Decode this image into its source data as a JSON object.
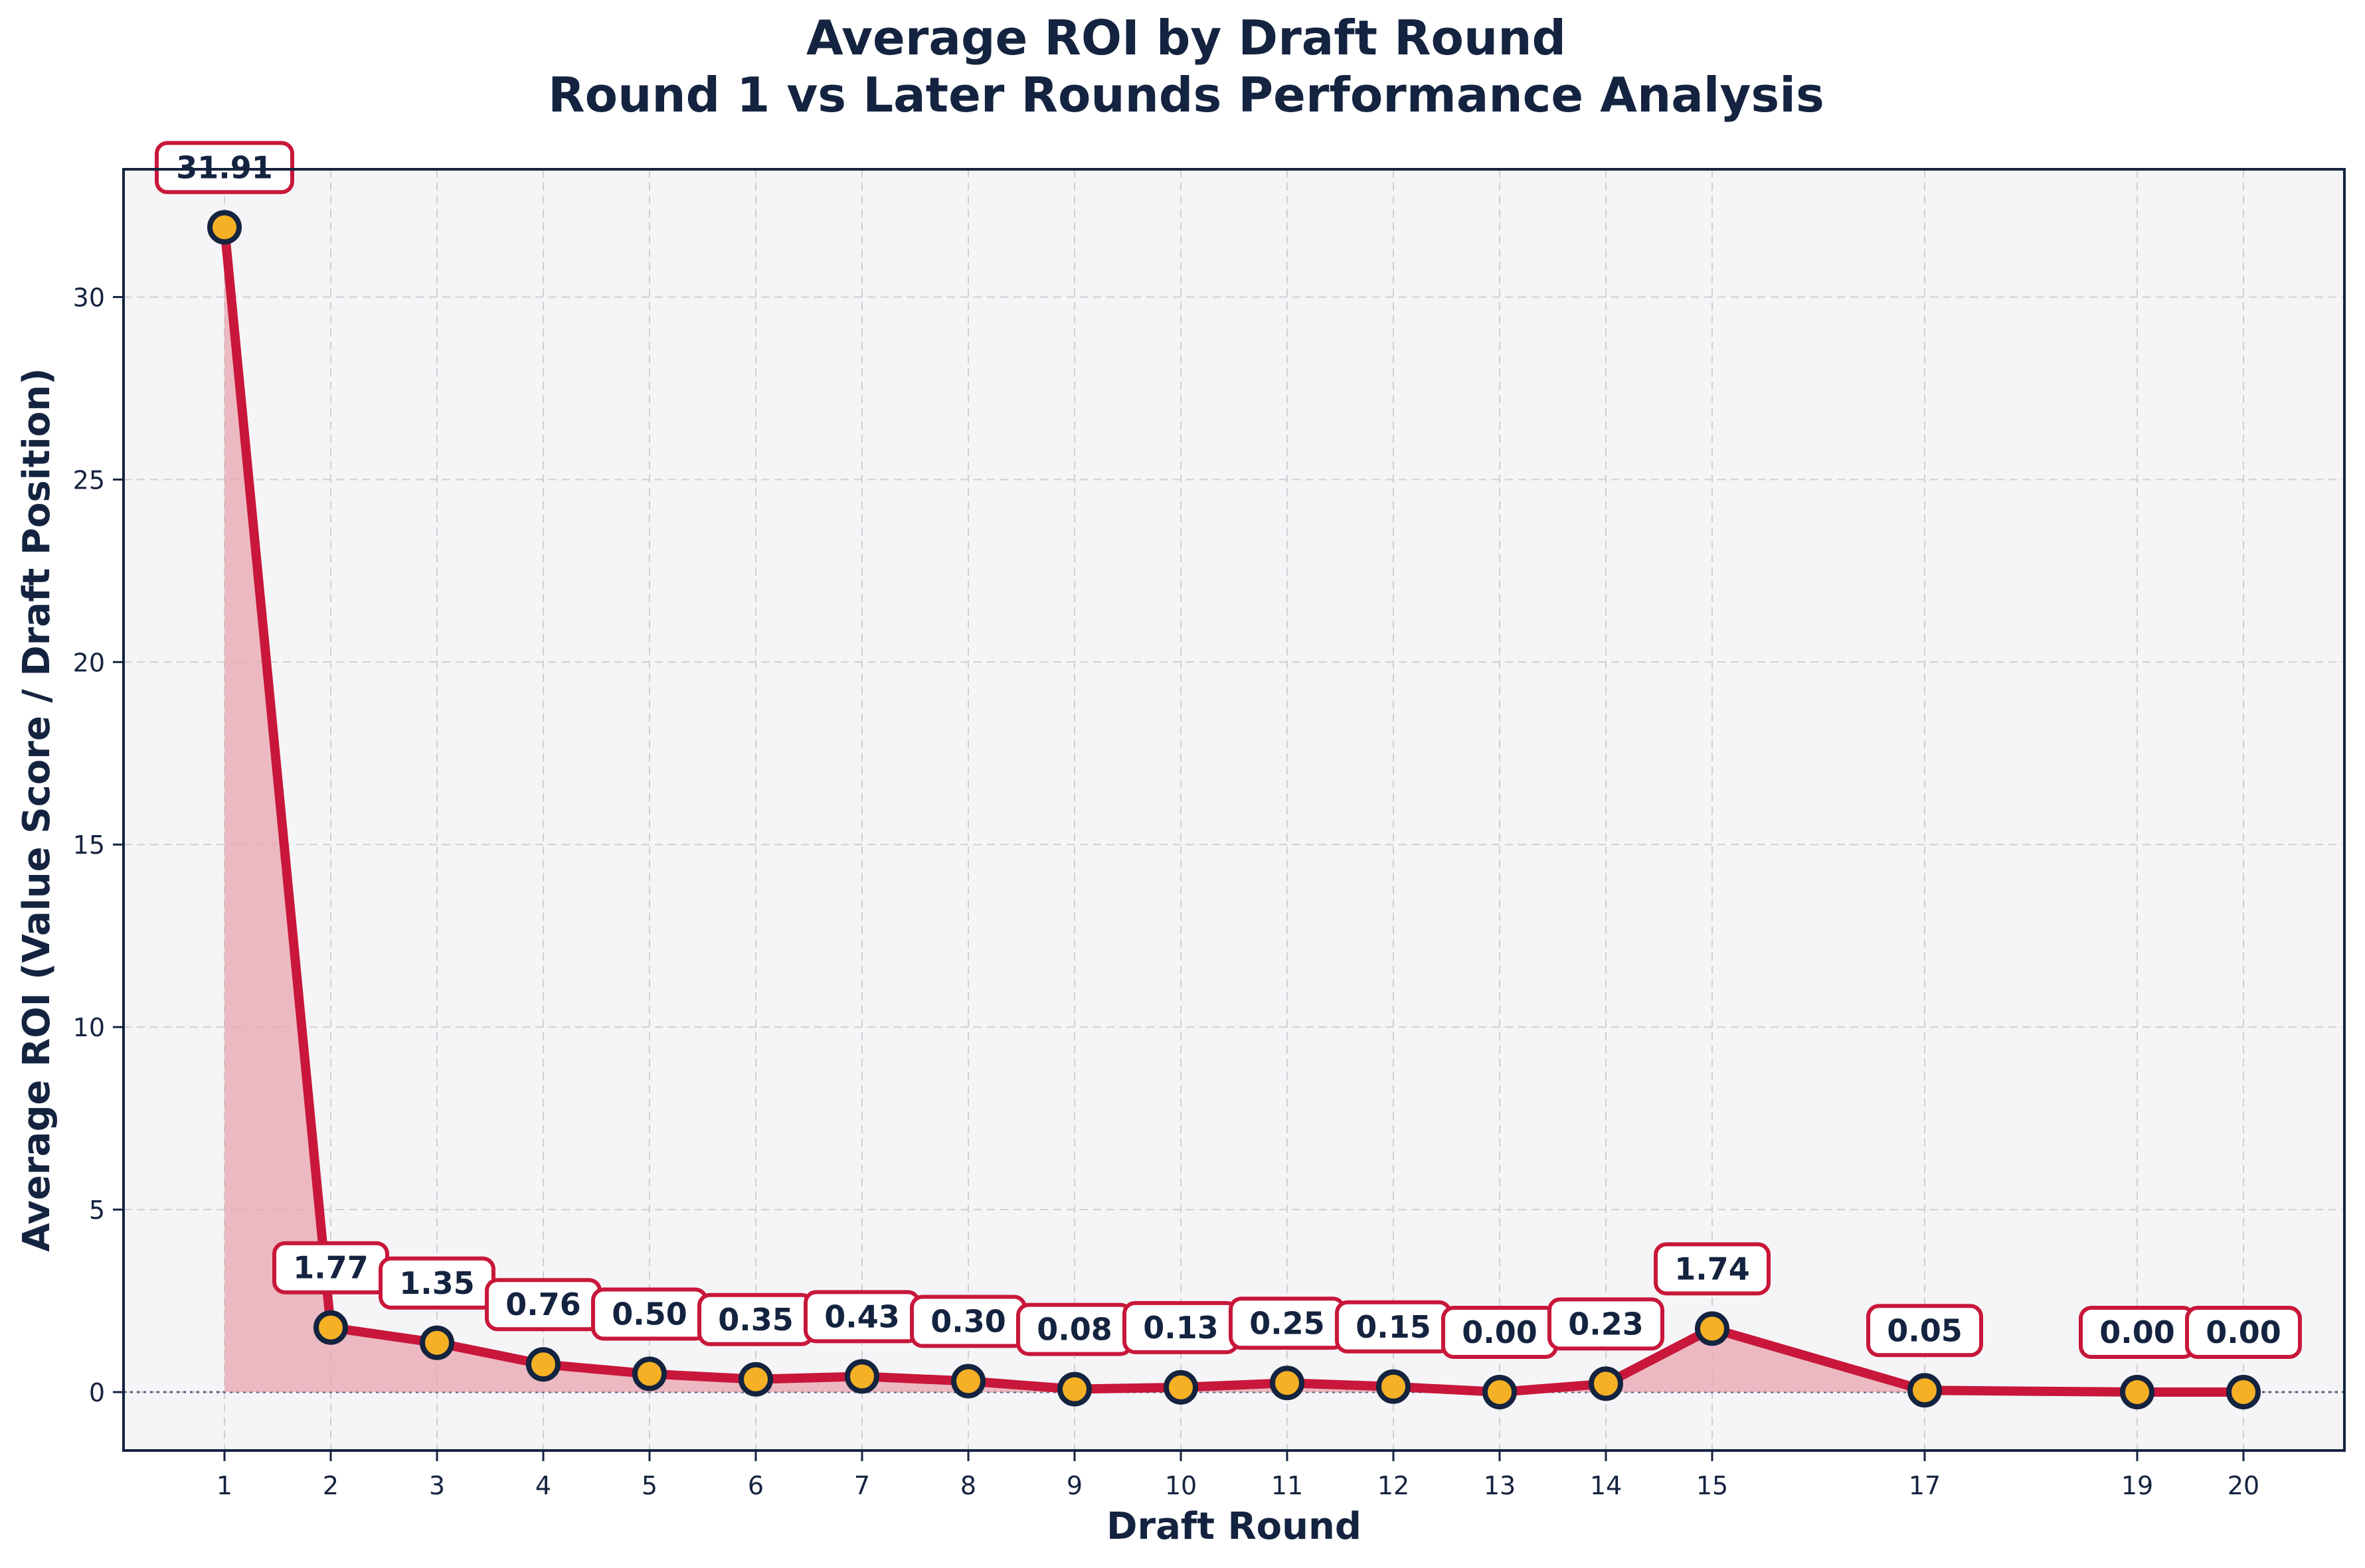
{
  "colors": {
    "line": "#c8173a",
    "fill": "#e8a4b0",
    "marker_fill": "#f5b025",
    "marker_edge": "#14233f",
    "text": "#14233f",
    "plot_bg": "#f5f5f7",
    "grid": "#cfcfd4",
    "label_box_edge": "#c8173a",
    "zero_line": "#4a5a78"
  },
  "chart_data": {
    "type": "line",
    "title": "Average ROI by Draft Round",
    "subtitle": "Round 1 vs Later Rounds Performance Analysis",
    "xlabel": "Draft Round",
    "ylabel": "Average ROI (Value Score / Draft Position)",
    "x": [
      1,
      2,
      3,
      4,
      5,
      6,
      7,
      8,
      9,
      10,
      11,
      12,
      13,
      14,
      15,
      17,
      19,
      20
    ],
    "values": [
      31.91,
      1.77,
      1.35,
      0.76,
      0.5,
      0.35,
      0.43,
      0.3,
      0.08,
      0.13,
      0.25,
      0.15,
      0.0,
      0.23,
      1.74,
      0.05,
      0.0,
      0.0
    ],
    "data_labels": [
      "31.91",
      "1.77",
      "1.35",
      "0.76",
      "0.50",
      "0.35",
      "0.43",
      "0.30",
      "0.08",
      "0.13",
      "0.25",
      "0.15",
      "0.00",
      "0.23",
      "1.74",
      "0.05",
      "0.00",
      "0.00"
    ],
    "xticks": [
      "1",
      "2",
      "3",
      "4",
      "5",
      "6",
      "7",
      "8",
      "9",
      "10",
      "11",
      "12",
      "13",
      "14",
      "15",
      "17",
      "19",
      "20"
    ],
    "yticks": [
      0,
      5,
      10,
      15,
      20,
      25,
      30
    ],
    "ytick_labels": [
      "0",
      "5",
      "10",
      "15",
      "20",
      "25",
      "30"
    ],
    "xlim": [
      0.05,
      20.95
    ],
    "ylim": [
      -1.6,
      33.5
    ],
    "grid": true,
    "legend": "none",
    "fill_under_line": true,
    "zero_reference_line": true
  }
}
